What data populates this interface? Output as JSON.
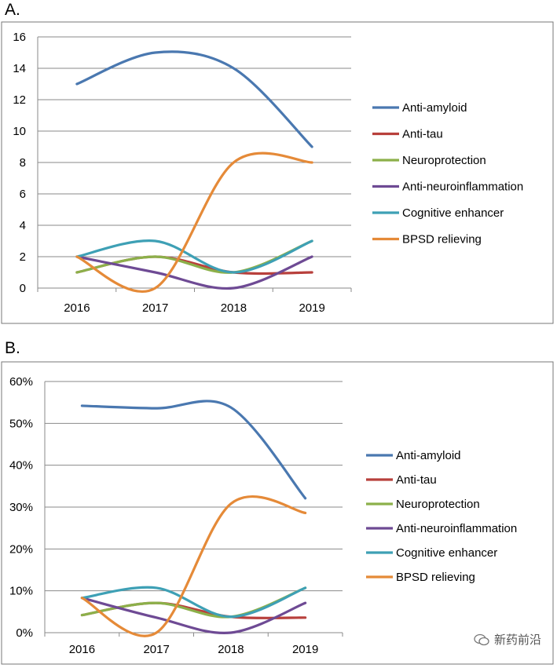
{
  "panels": {
    "a_label": "A.",
    "b_label": "B."
  },
  "watermark": {
    "text": "新药前沿",
    "icon": "wechat-icon"
  },
  "colors": {
    "Anti-amyloid": "#4a78b0",
    "Anti-tau": "#b8403c",
    "Neuroprotection": "#8cb04a",
    "Anti-neuroinflammation": "#6e4a94",
    "Cognitive enhancer": "#3ea0b5",
    "BPSD relieving": "#e58a38"
  },
  "chart_data": [
    {
      "type": "line",
      "title": "",
      "xlabel": "",
      "ylabel": "",
      "categories": [
        "2016",
        "2017",
        "2018",
        "2019"
      ],
      "ylim": [
        0,
        16
      ],
      "yticks": [
        0,
        2,
        4,
        6,
        8,
        10,
        12,
        14,
        16
      ],
      "ytick_labels": [
        "0",
        "2",
        "4",
        "6",
        "8",
        "10",
        "12",
        "14",
        "16"
      ],
      "grid": true,
      "legend": "right",
      "smooth": true,
      "series": [
        {
          "name": "Anti-amyloid",
          "values": [
            13,
            15,
            14,
            9
          ]
        },
        {
          "name": "Anti-tau",
          "values": [
            1,
            2,
            1,
            1
          ]
        },
        {
          "name": "Neuroprotection",
          "values": [
            1,
            2,
            1,
            3
          ]
        },
        {
          "name": "Anti-neuroinflammation",
          "values": [
            2,
            1,
            0,
            2
          ]
        },
        {
          "name": "Cognitive enhancer",
          "values": [
            2,
            3,
            1,
            3
          ]
        },
        {
          "name": "BPSD relieving",
          "values": [
            2,
            0,
            8,
            8
          ]
        }
      ]
    },
    {
      "type": "line",
      "title": "",
      "xlabel": "",
      "ylabel": "",
      "categories": [
        "2016",
        "2017",
        "2018",
        "2019"
      ],
      "ylim": [
        0,
        60
      ],
      "yticks": [
        0,
        10,
        20,
        30,
        40,
        50,
        60
      ],
      "ytick_labels": [
        "0%",
        "10%",
        "20%",
        "30%",
        "40%",
        "50%",
        "60%"
      ],
      "grid": true,
      "legend": "right",
      "smooth": true,
      "series": [
        {
          "name": "Anti-amyloid",
          "values": [
            54.2,
            53.6,
            53.8,
            32.1
          ]
        },
        {
          "name": "Anti-tau",
          "values": [
            4.2,
            7.1,
            3.8,
            3.6
          ]
        },
        {
          "name": "Neuroprotection",
          "values": [
            4.2,
            7.1,
            3.8,
            10.7
          ]
        },
        {
          "name": "Anti-neuroinflammation",
          "values": [
            8.3,
            3.6,
            0,
            7.1
          ]
        },
        {
          "name": "Cognitive enhancer",
          "values": [
            8.3,
            10.7,
            3.8,
            10.7
          ]
        },
        {
          "name": "BPSD relieving",
          "values": [
            8.3,
            0,
            30.8,
            28.6
          ]
        }
      ]
    }
  ]
}
